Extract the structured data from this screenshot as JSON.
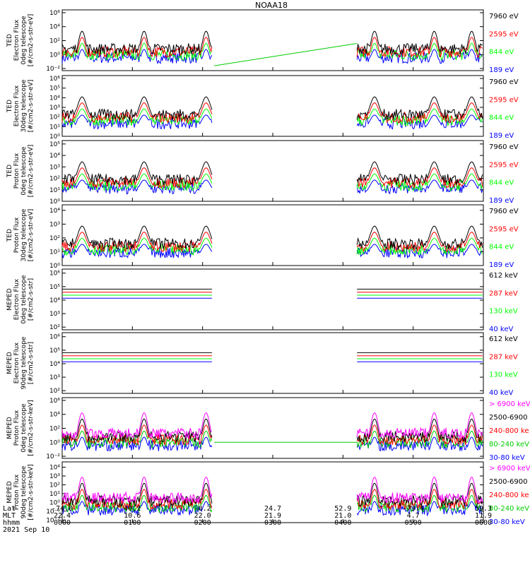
{
  "chart_data": {
    "type": "line",
    "title": "NOAA18",
    "date_label": "2021 Sep 10",
    "colors": {
      "black": "#000000",
      "red": "#ff0000",
      "green": "#00ff00",
      "blue": "#0000ff",
      "magenta": "#ff00ff",
      "line_green": "#00cc00"
    },
    "x_axis": {
      "row_labels": [
        "Lat",
        "MLT",
        "hhmm"
      ],
      "ticks": [
        {
          "lat": "-74.0",
          "mlt": "22.4",
          "time": "0000"
        },
        {
          "lat": "40.2",
          "mlt": "10.6",
          "time": "0100"
        },
        {
          "lat": "-8.2",
          "mlt": "22.0",
          "time": "0200"
        },
        {
          "lat": "24.7",
          "mlt": "21.9",
          "time": "0300"
        },
        {
          "lat": "52.9",
          "mlt": "21.0",
          "time": "0400"
        },
        {
          "lat": "-73.4",
          "mlt": "4.7",
          "time": "0500"
        },
        {
          "lat": "59.3",
          "mlt": "11.9",
          "time": "0600"
        }
      ],
      "xlim_minutes": [
        0,
        360
      ]
    },
    "panels": [
      {
        "ylabel": [
          "TED",
          "Electron Flux",
          "0deg telescope",
          "[#/cm2-s-str-eV]"
        ],
        "ticks": [
          {
            "exp": 6,
            "label": "10⁶"
          },
          {
            "exp": 4,
            "label": "10⁴"
          },
          {
            "exp": 2,
            "label": "10²"
          },
          {
            "exp": 0,
            "label": "10⁰"
          },
          {
            "exp": -2,
            "label": "10⁻²"
          }
        ],
        "ylim_exp": [
          -2.3,
          6.4
        ],
        "channels": [
          {
            "label": "7960 eV",
            "color": "#000000"
          },
          {
            "label": "2595 eV",
            "color": "#ff0000"
          },
          {
            "label": "844 eV",
            "color": "#00ff00"
          },
          {
            "label": "189 eV",
            "color": "#0000ff"
          }
        ],
        "gap_line": [
          [
            130,
            -1.6
          ],
          [
            252,
            1.6
          ]
        ]
      },
      {
        "ylabel": [
          "TED",
          "Electron Flux",
          "30deg telescope",
          "[#/cm2-s-str-eV]"
        ],
        "ticks": [
          {
            "exp": 6,
            "label": "10⁶"
          },
          {
            "exp": 5,
            "label": "10⁵"
          },
          {
            "exp": 4,
            "label": "10⁴"
          },
          {
            "exp": 3,
            "label": "10³"
          },
          {
            "exp": 2,
            "label": "10²"
          },
          {
            "exp": 1,
            "label": "10¹"
          },
          {
            "exp": 0,
            "label": "10⁰"
          }
        ],
        "ylim_exp": [
          0,
          6.3
        ],
        "channels": [
          {
            "label": "7960 eV",
            "color": "#000000"
          },
          {
            "label": "2595 eV",
            "color": "#ff0000"
          },
          {
            "label": "844 eV",
            "color": "#00ff00"
          },
          {
            "label": "189 eV",
            "color": "#0000ff"
          }
        ]
      },
      {
        "ylabel": [
          "TED",
          "Proton Flux",
          "0deg telescope",
          "[#/cm2-s-str-eV]"
        ],
        "ticks": [
          {
            "exp": 5,
            "label": "10⁵"
          },
          {
            "exp": 4,
            "label": "10⁴"
          },
          {
            "exp": 3,
            "label": "10³"
          },
          {
            "exp": 2,
            "label": "10²"
          },
          {
            "exp": 1,
            "label": "10¹"
          },
          {
            "exp": 0,
            "label": "10⁰"
          }
        ],
        "ylim_exp": [
          0,
          5.3
        ],
        "channels": [
          {
            "label": "7960 eV",
            "color": "#000000"
          },
          {
            "label": "2595 eV",
            "color": "#ff0000"
          },
          {
            "label": "844 eV",
            "color": "#00ff00"
          },
          {
            "label": "189 eV",
            "color": "#0000ff"
          }
        ]
      },
      {
        "ylabel": [
          "TED",
          "Proton Flux",
          "30deg telescope",
          "[#/cm2-s-str-eV]"
        ],
        "ticks": [
          {
            "exp": 4,
            "label": "10⁴"
          },
          {
            "exp": 3,
            "label": "10³"
          },
          {
            "exp": 2,
            "label": "10²"
          },
          {
            "exp": 1,
            "label": "10¹"
          },
          {
            "exp": 0,
            "label": "10⁰"
          }
        ],
        "ylim_exp": [
          0,
          4.4
        ],
        "channels": [
          {
            "label": "7960 eV",
            "color": "#000000"
          },
          {
            "label": "2595 eV",
            "color": "#ff0000"
          },
          {
            "label": "844 eV",
            "color": "#00ff00"
          },
          {
            "label": "189 eV",
            "color": "#0000ff"
          }
        ]
      },
      {
        "ylabel": [
          "MEPED",
          "Electron Flux",
          "0deg telescope",
          "[#/cm2-s-str]"
        ],
        "ticks": [
          {
            "exp": 6,
            "label": "10⁶"
          },
          {
            "exp": 5,
            "label": "10⁵"
          },
          {
            "exp": 4,
            "label": "10⁴"
          },
          {
            "exp": 3,
            "label": "10³"
          },
          {
            "exp": 2,
            "label": "10²"
          }
        ],
        "ylim_exp": [
          1.8,
          6.3
        ],
        "channels": [
          {
            "label": "612 keV",
            "color": "#000000"
          },
          {
            "label": "287 keV",
            "color": "#ff0000"
          },
          {
            "label": "130 keV",
            "color": "#00ff00"
          },
          {
            "label": "40 keV",
            "color": "#0000ff"
          }
        ]
      },
      {
        "ylabel": [
          "MEPED",
          "Electron Flux",
          "90deg telescope",
          "[#/cm2-s-str]"
        ],
        "ticks": [
          {
            "exp": 6,
            "label": "10⁶"
          },
          {
            "exp": 5,
            "label": "10⁵"
          },
          {
            "exp": 4,
            "label": "10⁴"
          },
          {
            "exp": 3,
            "label": "10³"
          },
          {
            "exp": 2,
            "label": "10²"
          }
        ],
        "ylim_exp": [
          1.8,
          6.3
        ],
        "channels": [
          {
            "label": "612 keV",
            "color": "#000000"
          },
          {
            "label": "287 keV",
            "color": "#ff0000"
          },
          {
            "label": "130 keV",
            "color": "#00ff00"
          },
          {
            "label": "40 keV",
            "color": "#0000ff"
          }
        ]
      },
      {
        "ylabel": [
          "MEPED",
          "Proton Flux",
          "0deg telescope",
          "[#/cm2-s-str-keV]"
        ],
        "ticks": [
          {
            "exp": 6,
            "label": "10⁶"
          },
          {
            "exp": 4,
            "label": "10⁴"
          },
          {
            "exp": 2,
            "label": "10²"
          },
          {
            "exp": 0,
            "label": "10⁰"
          },
          {
            "exp": -2,
            "label": "10⁻²"
          }
        ],
        "ylim_exp": [
          -2.3,
          6.4
        ],
        "channels": [
          {
            "label": "> 6900 keV",
            "color": "#ff00ff"
          },
          {
            "label": "2500-6900",
            "color": "#000000"
          },
          {
            "label": "240-800 ke",
            "color": "#ff0000"
          },
          {
            "label": "80-240 keV",
            "color": "#00cc00"
          },
          {
            "label": "30-80 keV",
            "color": "#0000ff"
          }
        ],
        "gap_line": [
          [
            130,
            0
          ],
          [
            252,
            0
          ]
        ]
      },
      {
        "ylabel": [
          "MEPED",
          "Proton Flux",
          "90deg telescope",
          "[#/cm2-s-str-keV]"
        ],
        "ticks": [
          {
            "exp": 4,
            "label": "10⁴"
          },
          {
            "exp": 3,
            "label": "10³"
          },
          {
            "exp": 2,
            "label": "10²"
          },
          {
            "exp": 1,
            "label": "10¹"
          },
          {
            "exp": 0,
            "label": "10⁰"
          },
          {
            "exp": -1,
            "label": "10⁻¹"
          },
          {
            "exp": -2,
            "label": "10⁻²"
          }
        ],
        "ylim_exp": [
          -2.3,
          4.6
        ],
        "channels": [
          {
            "label": "> 6900 keV",
            "color": "#ff00ff"
          },
          {
            "label": "2500-6900",
            "color": "#000000"
          },
          {
            "label": "240-800 ke",
            "color": "#ff0000"
          },
          {
            "label": "80-240 keV",
            "color": "#00cc00"
          },
          {
            "label": "30-80 keV",
            "color": "#0000ff"
          }
        ]
      }
    ],
    "active_intervals_minutes": [
      [
        0,
        128
      ],
      [
        252,
        360
      ]
    ],
    "pass_peaks_minutes": [
      17,
      70,
      123,
      267,
      318,
      350
    ]
  }
}
